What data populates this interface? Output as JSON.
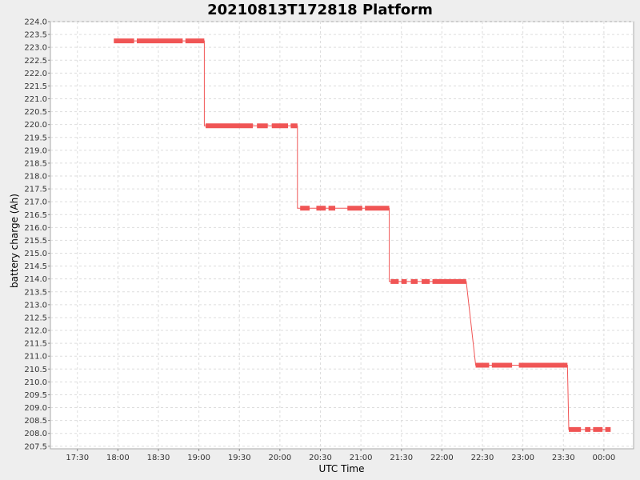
{
  "chart_data": {
    "type": "line",
    "title": "20210813T172818 Platform",
    "xlabel": "UTC Time",
    "ylabel": "battery charge (Ah)",
    "grid": true,
    "ylim": [
      207.4,
      224.0
    ],
    "xlim": [
      "17:10",
      "00:22"
    ],
    "x_ticks": [
      "17:30",
      "18:00",
      "18:30",
      "19:00",
      "19:30",
      "20:00",
      "20:30",
      "21:00",
      "21:30",
      "22:00",
      "22:30",
      "23:00",
      "23:30",
      "00:00"
    ],
    "y_ticks": [
      "207.5",
      "208.0",
      "208.5",
      "209.0",
      "209.5",
      "210.0",
      "210.5",
      "211.0",
      "211.5",
      "212.0",
      "212.5",
      "213.0",
      "213.5",
      "214.0",
      "214.5",
      "215.0",
      "215.5",
      "216.0",
      "216.5",
      "217.0",
      "217.5",
      "218.0",
      "218.5",
      "219.0",
      "219.5",
      "220.0",
      "220.5",
      "221.0",
      "221.5",
      "222.0",
      "222.5",
      "223.0",
      "223.5",
      "224.0"
    ],
    "series": [
      {
        "color": "#f05555",
        "points": [
          [
            "17:57",
            223.25
          ],
          [
            "18:12",
            223.25
          ],
          [
            "18:14",
            223.25
          ],
          [
            "18:48",
            223.25
          ],
          [
            "18:50",
            223.25
          ],
          [
            "19:04",
            223.25
          ],
          [
            "19:04",
            219.95
          ],
          [
            "19:05",
            219.95
          ],
          [
            "19:40",
            219.95
          ],
          [
            "19:43",
            219.95
          ],
          [
            "19:51",
            219.95
          ],
          [
            "19:54",
            219.95
          ],
          [
            "20:06",
            219.95
          ],
          [
            "20:08",
            219.95
          ],
          [
            "20:13",
            219.95
          ],
          [
            "20:13",
            216.75
          ],
          [
            "20:16",
            216.75
          ],
          [
            "20:22",
            216.75
          ],
          [
            "20:27",
            216.75
          ],
          [
            "20:34",
            216.75
          ],
          [
            "20:36",
            216.75
          ],
          [
            "20:41",
            216.75
          ],
          [
            "20:50",
            216.75
          ],
          [
            "21:01",
            216.75
          ],
          [
            "21:03",
            216.75
          ],
          [
            "21:21",
            216.75
          ],
          [
            "21:21",
            213.9
          ],
          [
            "21:22",
            213.9
          ],
          [
            "21:28",
            213.9
          ],
          [
            "21:30",
            213.9
          ],
          [
            "21:34",
            213.9
          ],
          [
            "21:37",
            213.9
          ],
          [
            "21:42",
            213.9
          ],
          [
            "21:45",
            213.9
          ],
          [
            "21:51",
            213.9
          ],
          [
            "21:53",
            213.9
          ],
          [
            "22:18",
            213.9
          ],
          [
            "22:25",
            210.65
          ],
          [
            "22:35",
            210.65
          ],
          [
            "22:37",
            210.65
          ],
          [
            "22:52",
            210.65
          ],
          [
            "22:57",
            210.65
          ],
          [
            "23:33",
            210.65
          ],
          [
            "23:34",
            208.15
          ],
          [
            "23:43",
            208.15
          ],
          [
            "23:46",
            208.15
          ],
          [
            "23:50",
            208.15
          ],
          [
            "23:52",
            208.15
          ],
          [
            "23:59",
            208.15
          ],
          [
            "00:01",
            208.15
          ],
          [
            "00:05",
            208.15
          ]
        ],
        "segments": [
          [
            [
              "17:57",
              223.25
            ],
            [
              "18:12",
              223.25
            ]
          ],
          [
            [
              "18:14",
              223.25
            ],
            [
              "18:48",
              223.25
            ]
          ],
          [
            [
              "18:50",
              223.25
            ],
            [
              "19:04",
              223.25
            ]
          ],
          [
            [
              "19:05",
              219.95
            ],
            [
              "19:40",
              219.95
            ]
          ],
          [
            [
              "19:43",
              219.95
            ],
            [
              "19:51",
              219.95
            ]
          ],
          [
            [
              "19:54",
              219.95
            ],
            [
              "20:06",
              219.95
            ]
          ],
          [
            [
              "20:08",
              219.95
            ],
            [
              "20:13",
              219.95
            ]
          ],
          [
            [
              "20:15",
              216.75
            ],
            [
              "20:22",
              216.75
            ]
          ],
          [
            [
              "20:27",
              216.75
            ],
            [
              "20:34",
              216.75
            ]
          ],
          [
            [
              "20:36",
              216.75
            ],
            [
              "20:41",
              216.75
            ]
          ],
          [
            [
              "20:50",
              216.75
            ],
            [
              "21:01",
              216.75
            ]
          ],
          [
            [
              "21:03",
              216.75
            ],
            [
              "21:21",
              216.75
            ]
          ],
          [
            [
              "21:22",
              213.9
            ],
            [
              "21:28",
              213.9
            ]
          ],
          [
            [
              "21:30",
              213.9
            ],
            [
              "21:34",
              213.9
            ]
          ],
          [
            [
              "21:37",
              213.9
            ],
            [
              "21:42",
              213.9
            ]
          ],
          [
            [
              "21:45",
              213.9
            ],
            [
              "21:51",
              213.9
            ]
          ],
          [
            [
              "21:53",
              213.9
            ],
            [
              "22:18",
              213.9
            ]
          ],
          [
            [
              "22:25",
              210.65
            ],
            [
              "22:35",
              210.65
            ]
          ],
          [
            [
              "22:37",
              210.65
            ],
            [
              "22:52",
              210.65
            ]
          ],
          [
            [
              "22:57",
              210.65
            ],
            [
              "23:33",
              210.65
            ]
          ],
          [
            [
              "23:34",
              208.15
            ],
            [
              "23:43",
              208.15
            ]
          ],
          [
            [
              "23:46",
              208.15
            ],
            [
              "23:50",
              208.15
            ]
          ],
          [
            [
              "23:52",
              208.15
            ],
            [
              "23:59",
              208.15
            ]
          ],
          [
            [
              "00:01",
              208.15
            ],
            [
              "00:05",
              208.15
            ]
          ]
        ]
      }
    ]
  }
}
